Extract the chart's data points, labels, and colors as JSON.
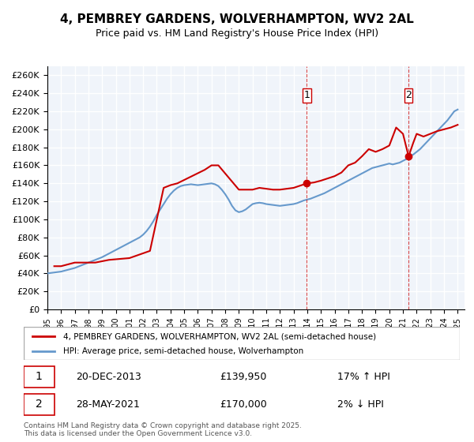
{
  "title": "4, PEMBREY GARDENS, WOLVERHAMPTON, WV2 2AL",
  "subtitle": "Price paid vs. HM Land Registry's House Price Index (HPI)",
  "footer": "Contains HM Land Registry data © Crown copyright and database right 2025.\nThis data is licensed under the Open Government Licence v3.0.",
  "legend_line1": "4, PEMBREY GARDENS, WOLVERHAMPTON, WV2 2AL (semi-detached house)",
  "legend_line2": "HPI: Average price, semi-detached house, Wolverhampton",
  "annotation1_label": "1",
  "annotation1_date": "20-DEC-2013",
  "annotation1_price": "£139,950",
  "annotation1_hpi": "17% ↑ HPI",
  "annotation1_year": 2013.97,
  "annotation1_value": 139950,
  "annotation2_label": "2",
  "annotation2_date": "28-MAY-2021",
  "annotation2_price": "£170,000",
  "annotation2_hpi": "2% ↓ HPI",
  "annotation2_year": 2021.41,
  "annotation2_value": 170000,
  "red_color": "#cc0000",
  "blue_color": "#6699cc",
  "background_color": "#f0f4fa",
  "grid_color": "#ffffff",
  "ylim": [
    0,
    270000
  ],
  "ytick_step": 20000,
  "xmin": 1995,
  "xmax": 2025.5,
  "hpi_data": {
    "years": [
      1995.0,
      1995.25,
      1995.5,
      1995.75,
      1996.0,
      1996.25,
      1996.5,
      1996.75,
      1997.0,
      1997.25,
      1997.5,
      1997.75,
      1998.0,
      1998.25,
      1998.5,
      1998.75,
      1999.0,
      1999.25,
      1999.5,
      1999.75,
      2000.0,
      2000.25,
      2000.5,
      2000.75,
      2001.0,
      2001.25,
      2001.5,
      2001.75,
      2002.0,
      2002.25,
      2002.5,
      2002.75,
      2003.0,
      2003.25,
      2003.5,
      2003.75,
      2004.0,
      2004.25,
      2004.5,
      2004.75,
      2005.0,
      2005.25,
      2005.5,
      2005.75,
      2006.0,
      2006.25,
      2006.5,
      2006.75,
      2007.0,
      2007.25,
      2007.5,
      2007.75,
      2008.0,
      2008.25,
      2008.5,
      2008.75,
      2009.0,
      2009.25,
      2009.5,
      2009.75,
      2010.0,
      2010.25,
      2010.5,
      2010.75,
      2011.0,
      2011.25,
      2011.5,
      2011.75,
      2012.0,
      2012.25,
      2012.5,
      2012.75,
      2013.0,
      2013.25,
      2013.5,
      2013.75,
      2014.0,
      2014.25,
      2014.5,
      2014.75,
      2015.0,
      2015.25,
      2015.5,
      2015.75,
      2016.0,
      2016.25,
      2016.5,
      2016.75,
      2017.0,
      2017.25,
      2017.5,
      2017.75,
      2018.0,
      2018.25,
      2018.5,
      2018.75,
      2019.0,
      2019.25,
      2019.5,
      2019.75,
      2020.0,
      2020.25,
      2020.5,
      2020.75,
      2021.0,
      2021.25,
      2021.5,
      2021.75,
      2022.0,
      2022.25,
      2022.5,
      2022.75,
      2023.0,
      2023.25,
      2023.5,
      2023.75,
      2024.0,
      2024.25,
      2024.5,
      2024.75,
      2025.0
    ],
    "values": [
      40000,
      40500,
      41000,
      41500,
      42000,
      43000,
      44000,
      45000,
      46000,
      47500,
      49000,
      50500,
      52000,
      53500,
      55000,
      56500,
      58000,
      60000,
      62000,
      64000,
      66000,
      68000,
      70000,
      72000,
      74000,
      76000,
      78000,
      80000,
      83000,
      87000,
      92000,
      98000,
      105000,
      111000,
      117000,
      123000,
      128000,
      132000,
      135000,
      137000,
      138000,
      138500,
      139000,
      138500,
      138000,
      138500,
      139000,
      139500,
      140000,
      139000,
      137000,
      133000,
      128000,
      122000,
      115000,
      110000,
      108000,
      109000,
      111000,
      114000,
      117000,
      118000,
      118500,
      118000,
      117000,
      116500,
      116000,
      115500,
      115000,
      115500,
      116000,
      116500,
      117000,
      118000,
      119500,
      121000,
      122000,
      123000,
      124500,
      126000,
      127500,
      129000,
      131000,
      133000,
      135000,
      137000,
      139000,
      141000,
      143000,
      145000,
      147000,
      149000,
      151000,
      153000,
      155000,
      157000,
      158000,
      159000,
      160000,
      161000,
      162000,
      161000,
      162000,
      163000,
      165000,
      167000,
      170000,
      172000,
      175000,
      178000,
      182000,
      186000,
      190000,
      194000,
      198000,
      202000,
      206000,
      210000,
      215000,
      220000,
      222000
    ]
  },
  "price_data": {
    "years": [
      1995.5,
      1996.0,
      1997.0,
      1998.5,
      1999.5,
      2001.0,
      2002.5,
      2003.5,
      2004.0,
      2004.5,
      2006.5,
      2007.0,
      2007.5,
      2009.0,
      2010.0,
      2010.5,
      2011.5,
      2012.0,
      2013.0,
      2013.97,
      2014.5,
      2015.0,
      2016.0,
      2016.5,
      2017.0,
      2017.5,
      2018.0,
      2018.5,
      2019.0,
      2019.5,
      2020.0,
      2020.5,
      2021.0,
      2021.41,
      2021.75,
      2022.0,
      2022.5,
      2023.0,
      2023.5,
      2024.0,
      2024.5,
      2025.0
    ],
    "values": [
      48000,
      48000,
      52000,
      52000,
      55000,
      57000,
      65000,
      135000,
      138000,
      140000,
      155000,
      160000,
      160000,
      133000,
      133000,
      135000,
      133000,
      133000,
      135000,
      139950,
      141000,
      143000,
      148000,
      152000,
      160000,
      163000,
      170000,
      178000,
      175000,
      178000,
      182000,
      202000,
      195000,
      170000,
      185000,
      195000,
      192000,
      195000,
      198000,
      200000,
      202000,
      205000
    ]
  }
}
